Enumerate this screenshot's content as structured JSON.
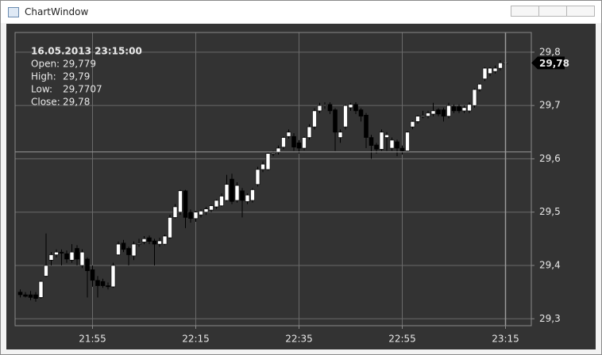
{
  "window_title": "ChartWindow",
  "chart_data": {
    "type": "candlestick",
    "x": [
      "21:41",
      "21:42",
      "21:43",
      "21:44",
      "21:45",
      "21:46",
      "21:47",
      "21:48",
      "21:49",
      "21:50",
      "21:51",
      "21:52",
      "21:53",
      "21:54",
      "21:55",
      "21:56",
      "21:57",
      "21:58",
      "21:59",
      "22:00",
      "22:01",
      "22:02",
      "22:03",
      "22:04",
      "22:05",
      "22:06",
      "22:07",
      "22:08",
      "22:09",
      "22:10",
      "22:11",
      "22:12",
      "22:13",
      "22:14",
      "22:15",
      "22:16",
      "22:17",
      "22:18",
      "22:19",
      "22:20",
      "22:21",
      "22:22",
      "22:23",
      "22:24",
      "22:25",
      "22:26",
      "22:27",
      "22:28",
      "22:29",
      "22:30",
      "22:31",
      "22:32",
      "22:33",
      "22:34",
      "22:35",
      "22:36",
      "22:37",
      "22:38",
      "22:39",
      "22:40",
      "22:41",
      "22:42",
      "22:43",
      "22:44",
      "22:45",
      "22:46",
      "22:47",
      "22:48",
      "22:49",
      "22:50",
      "22:51",
      "22:52",
      "22:53",
      "22:54",
      "22:55",
      "22:56",
      "22:57",
      "22:58",
      "22:59",
      "23:00",
      "23:01",
      "23:02",
      "23:03",
      "23:04",
      "23:05",
      "23:06",
      "23:07",
      "23:08",
      "23:09",
      "23:10",
      "23:11",
      "23:12",
      "23:13",
      "23:14",
      "23:15"
    ],
    "open": [
      29.35,
      29.345,
      29.345,
      29.345,
      29.34,
      29.38,
      29.41,
      29.42,
      29.425,
      29.422,
      29.41,
      29.432,
      29.4,
      29.412,
      29.392,
      29.372,
      29.37,
      29.362,
      29.36,
      29.42,
      29.442,
      29.432,
      29.418,
      29.44,
      29.444,
      29.452,
      29.446,
      29.44,
      29.44,
      29.452,
      29.49,
      29.5,
      29.54,
      29.5,
      29.488,
      29.495,
      29.5,
      29.504,
      29.51,
      29.512,
      29.522,
      29.562,
      29.522,
      29.54,
      29.52,
      29.522,
      29.552,
      29.58,
      29.58,
      29.61,
      29.612,
      29.622,
      29.642,
      29.642,
      29.63,
      29.62,
      29.64,
      29.66,
      29.69,
      29.7,
      29.702,
      29.692,
      29.64,
      29.66,
      29.696,
      29.702,
      29.692,
      29.682,
      29.64,
      29.626,
      29.618,
      29.64,
      29.62,
      29.632,
      29.62,
      29.615,
      29.66,
      29.67,
      29.68,
      29.68,
      29.684,
      29.692,
      29.692,
      29.68,
      29.698,
      29.698,
      29.69,
      29.69,
      29.7,
      29.73,
      29.75,
      29.76,
      29.764,
      29.77,
      29.779
    ],
    "high": [
      29.355,
      29.35,
      29.352,
      29.35,
      29.372,
      29.46,
      29.425,
      29.43,
      29.43,
      29.428,
      29.44,
      29.438,
      29.43,
      29.415,
      29.4,
      29.38,
      29.375,
      29.368,
      29.405,
      29.445,
      29.448,
      29.435,
      29.445,
      29.45,
      29.455,
      29.456,
      29.45,
      29.452,
      29.458,
      29.495,
      29.515,
      29.542,
      29.542,
      29.505,
      29.502,
      29.505,
      29.51,
      29.514,
      29.524,
      29.535,
      29.57,
      29.572,
      29.556,
      29.545,
      29.535,
      29.545,
      29.585,
      29.595,
      29.612,
      29.615,
      29.625,
      29.642,
      29.655,
      29.648,
      29.635,
      29.642,
      29.665,
      29.695,
      29.705,
      29.706,
      29.706,
      29.695,
      29.655,
      29.702,
      29.705,
      29.706,
      29.695,
      29.686,
      29.645,
      29.63,
      29.655,
      29.65,
      29.64,
      29.636,
      29.625,
      29.652,
      29.672,
      29.682,
      29.69,
      29.69,
      29.705,
      29.695,
      29.696,
      29.705,
      29.702,
      29.702,
      29.7,
      29.706,
      29.732,
      29.742,
      29.772,
      29.772,
      29.775,
      29.785,
      29.79
    ],
    "low": [
      29.34,
      29.34,
      29.335,
      29.332,
      29.338,
      29.378,
      29.4,
      29.415,
      29.4,
      29.405,
      29.405,
      29.4,
      29.395,
      29.34,
      29.36,
      29.34,
      29.358,
      29.355,
      29.358,
      29.418,
      29.425,
      29.4,
      29.41,
      29.435,
      29.44,
      29.44,
      29.4,
      29.435,
      29.438,
      29.45,
      29.488,
      29.495,
      29.47,
      29.48,
      29.482,
      29.49,
      29.495,
      29.5,
      29.506,
      29.51,
      29.52,
      29.515,
      29.518,
      29.49,
      29.515,
      29.518,
      29.548,
      29.575,
      29.578,
      29.605,
      29.608,
      29.618,
      29.638,
      29.615,
      29.61,
      29.616,
      29.636,
      29.655,
      29.686,
      29.694,
      29.684,
      29.615,
      29.63,
      29.655,
      29.69,
      29.684,
      29.67,
      29.62,
      29.6,
      29.61,
      29.615,
      29.615,
      29.615,
      29.605,
      29.608,
      29.612,
      29.656,
      29.666,
      29.676,
      29.676,
      29.68,
      29.68,
      29.67,
      29.676,
      29.686,
      29.686,
      29.686,
      29.686,
      29.696,
      29.726,
      29.746,
      29.755,
      29.76,
      29.766,
      29.7707
    ],
    "close": [
      29.345,
      29.342,
      29.34,
      29.338,
      29.37,
      29.4,
      29.42,
      29.425,
      29.423,
      29.412,
      29.425,
      29.412,
      29.425,
      29.39,
      29.372,
      29.362,
      29.362,
      29.36,
      29.4,
      29.44,
      29.43,
      29.42,
      29.44,
      29.441,
      29.45,
      29.445,
      29.44,
      29.446,
      29.455,
      29.49,
      29.51,
      29.54,
      29.49,
      29.488,
      29.5,
      29.502,
      29.506,
      29.512,
      29.522,
      29.53,
      29.552,
      29.52,
      29.55,
      29.522,
      29.532,
      29.542,
      29.58,
      29.59,
      29.61,
      29.611,
      29.62,
      29.64,
      29.65,
      29.622,
      29.62,
      29.64,
      29.66,
      29.69,
      29.7,
      29.701,
      29.69,
      29.65,
      29.65,
      29.7,
      29.702,
      29.69,
      29.68,
      29.64,
      29.625,
      29.618,
      29.65,
      29.645,
      29.635,
      29.62,
      29.615,
      29.65,
      29.67,
      29.68,
      29.681,
      29.686,
      29.69,
      29.684,
      29.68,
      29.7,
      29.69,
      29.69,
      29.696,
      29.702,
      29.73,
      29.74,
      29.77,
      29.77,
      29.77,
      29.78,
      29.78
    ],
    "up_color": "#ffffff",
    "down_color": "#000000",
    "xlim": [
      "21:40",
      "23:20"
    ],
    "xticks": [
      "21:55",
      "22:15",
      "22:35",
      "22:55",
      "23:15"
    ],
    "ylim": [
      29.287,
      29.837
    ],
    "yticks": [
      {
        "value": 29.3,
        "label": "29,3"
      },
      {
        "value": 29.4,
        "label": "29,4"
      },
      {
        "value": 29.5,
        "label": "29,5"
      },
      {
        "value": 29.6,
        "label": "29,6"
      },
      {
        "value": 29.7,
        "label": "29,7"
      },
      {
        "value": 29.8,
        "label": "29,8"
      }
    ],
    "grid": true,
    "crosshair": {
      "x": "23:15",
      "y": 29.613
    },
    "last_value": {
      "value": 29.78,
      "label": "29,78"
    },
    "info": {
      "title": "16.05.2013 23:15:00",
      "rows": [
        [
          "Open:",
          "29,779"
        ],
        [
          "High:",
          "29,79"
        ],
        [
          "Low:",
          "29,7707"
        ],
        [
          "Close:",
          "29,78"
        ]
      ]
    }
  }
}
